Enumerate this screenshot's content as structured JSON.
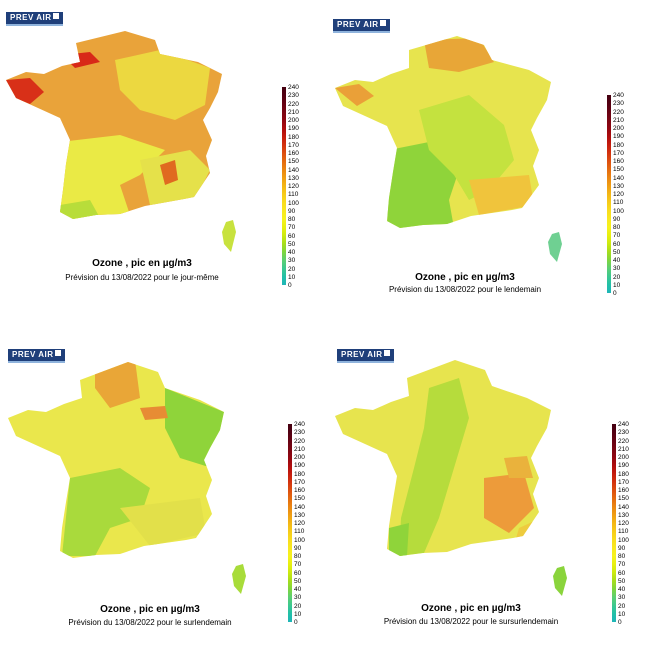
{
  "colors": {
    "title": "#000000",
    "logo_bg": "#1f3f7a",
    "scale": [
      "#1fb5b8",
      "#22c0a8",
      "#3cc890",
      "#5ccf73",
      "#7fd63e",
      "#a7dd1c",
      "#ccea10",
      "#e8f010",
      "#f6f21e",
      "#f8e820",
      "#f8dc1e",
      "#f6cb1a",
      "#f3b716",
      "#ef9e14",
      "#ea8512",
      "#e46a10",
      "#dc4e10",
      "#d2320f",
      "#c41c0e",
      "#ad0c0e",
      "#900611",
      "#7a0613",
      "#660213",
      "#520012",
      "#440010"
    ]
  },
  "legend": {
    "ticks": [
      "240",
      "230",
      "220",
      "210",
      "200",
      "190",
      "180",
      "170",
      "160",
      "150",
      "140",
      "130",
      "120",
      "110",
      "100",
      "90",
      "80",
      "70",
      "60",
      "50",
      "40",
      "30",
      "20",
      "10",
      "0"
    ]
  },
  "panels": [
    {
      "logo": "PREV AIR",
      "title": "Ozone , pic en µg/m3",
      "subtitle": "Prévision du 13/08/2022 pour le jour-même",
      "base_color": "#e9a33a"
    },
    {
      "logo": "PREV AIR",
      "title": "Ozone , pic en µg/m3",
      "subtitle": "Prévision du 13/08/2022 pour le lendemain",
      "base_color": "#e7e44e"
    },
    {
      "logo": "PREV AIR",
      "title": "Ozone , pic en µg/m3",
      "subtitle": "Prévision du 13/08/2022 pour le surlendemain",
      "base_color": "#eae74c"
    },
    {
      "logo": "PREV AIR",
      "title": "Ozone , pic en µg/m3",
      "subtitle": "Prévision du 13/08/2022 pour le sursurlendemain",
      "base_color": "#e7e44e"
    }
  ]
}
